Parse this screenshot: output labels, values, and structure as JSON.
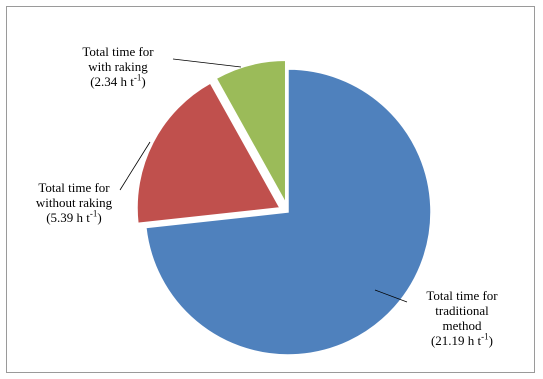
{
  "chart_data": {
    "type": "pie",
    "title": "",
    "slices": [
      {
        "name": "Total time for traditional method",
        "value": 21.19,
        "label_lines": [
          "Total time for",
          "traditional",
          "method"
        ],
        "value_text": "(21.19 h t",
        "unit_sup": "-1",
        "value_close": ")",
        "color": "#4f81bd",
        "exploded": false
      },
      {
        "name": "Total time for without raking",
        "value": 5.39,
        "label_lines": [
          "Total time for",
          "without raking"
        ],
        "value_text": "(5.39 h t",
        "unit_sup": "-1",
        "value_close": ")",
        "color": "#c0504d",
        "exploded": true
      },
      {
        "name": "Total time for with raking",
        "value": 2.34,
        "label_lines": [
          "Total time for",
          "with raking"
        ],
        "value_text": "(2.34 h t",
        "unit_sup": "-1",
        "value_close": ")",
        "color": "#9bbb59",
        "exploded": true
      }
    ],
    "legend": "none"
  }
}
